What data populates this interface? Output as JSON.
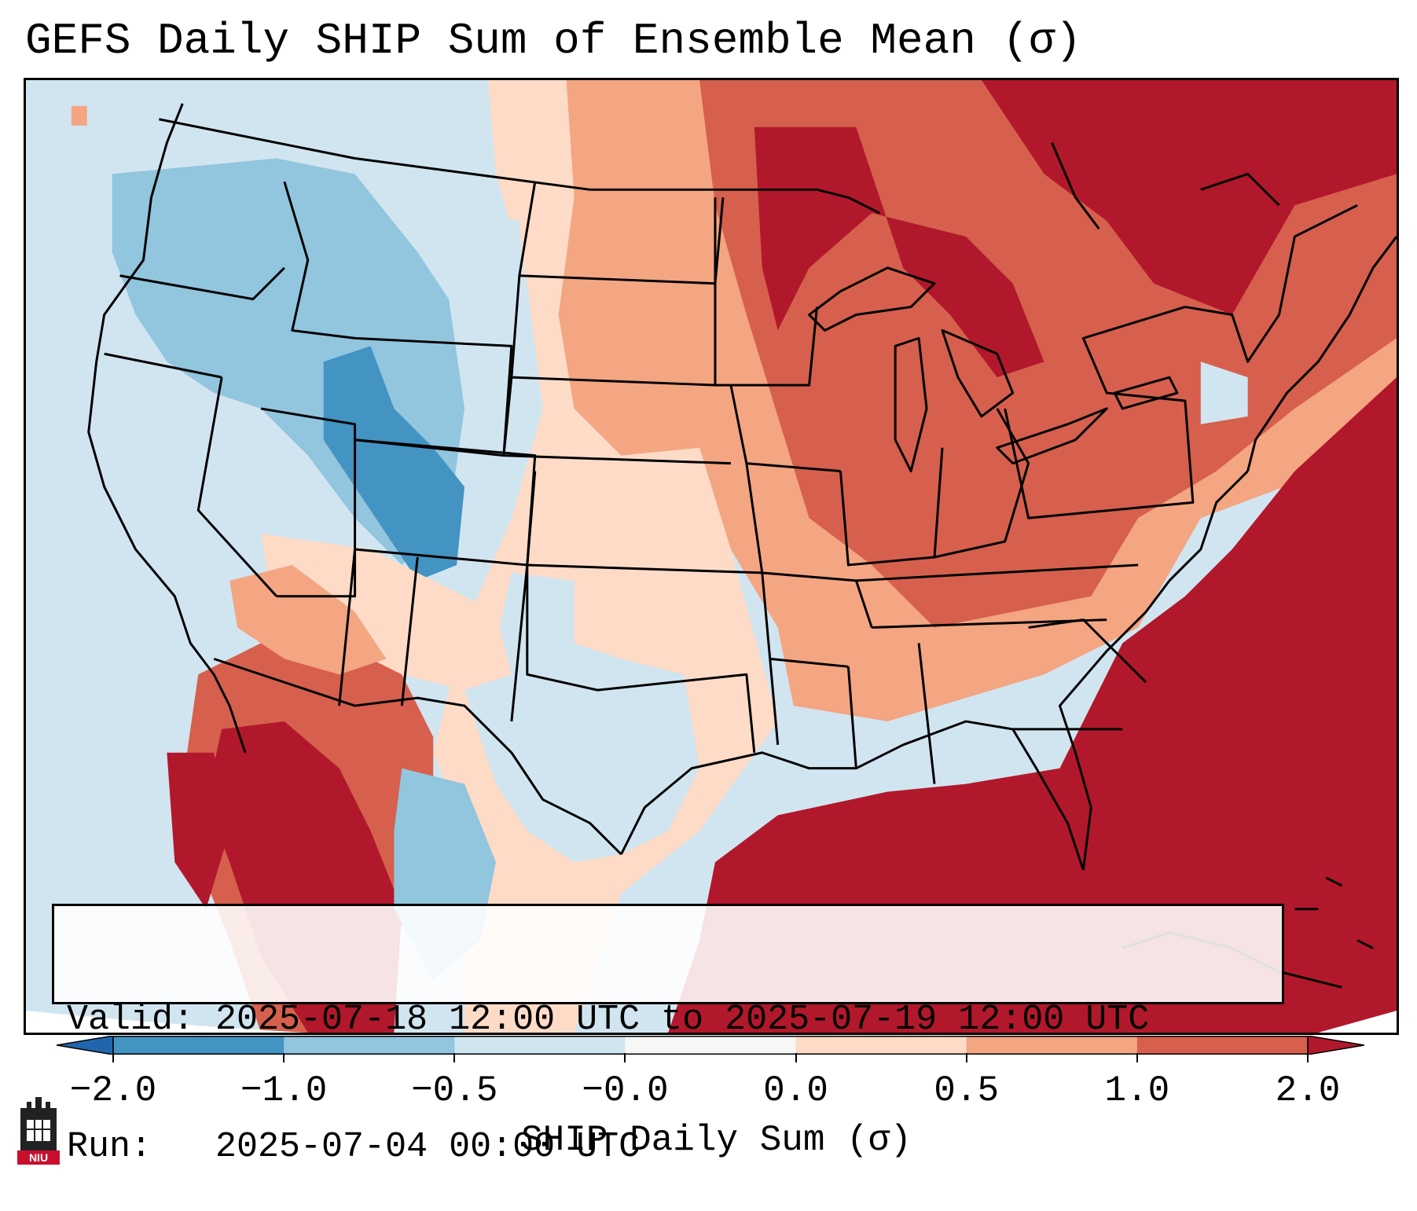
{
  "title": "GEFS Daily SHIP Sum of Ensemble Mean (σ)",
  "info": {
    "valid": "Valid: 2025-07-18 12:00 UTC to 2025-07-19 12:00 UTC",
    "run": "Run:   2025-07-04 00:00 UTC"
  },
  "colorbar": {
    "label": "SHIP Daily Sum (σ)",
    "ticks": [
      "−2.0",
      "−1.0",
      "−0.5",
      "−0.0",
      "0.0",
      "0.5",
      "1.0",
      "2.0"
    ],
    "bins": [
      {
        "from": -2.0,
        "to": -1.0,
        "color": "#4393c3"
      },
      {
        "from": -1.0,
        "to": -0.5,
        "color": "#92c5de"
      },
      {
        "from": -0.5,
        "to": 0.0,
        "color": "#d1e5f0"
      },
      {
        "from": 0.0,
        "to": 0.0,
        "color": "#f7f7f7"
      },
      {
        "from": 0.0,
        "to": 0.5,
        "color": "#fddbc7"
      },
      {
        "from": 0.5,
        "to": 1.0,
        "color": "#f4a582"
      },
      {
        "from": 1.0,
        "to": 2.0,
        "color": "#d6604d"
      }
    ],
    "under_color": "#2166ac",
    "over_color": "#b2182b"
  },
  "logo": {
    "text": "NIU"
  },
  "map": {
    "projection": "Lambert Conformal",
    "region": "CONUS",
    "regions": [
      {
        "name": "pacific-northwest",
        "category": "-0.5 to 0.0"
      },
      {
        "name": "northern-rockies",
        "category": "-1.0 to -0.5"
      },
      {
        "name": "colorado",
        "category": "-2.0 to -1.0"
      },
      {
        "name": "texas",
        "category": "-0.5 to 0.0"
      },
      {
        "name": "upper-midwest",
        "category": "> 2.0"
      },
      {
        "name": "gulf-of-mexico",
        "category": "> 2.0"
      },
      {
        "name": "southeast",
        "category": "1.0 to 2.0"
      }
    ]
  }
}
